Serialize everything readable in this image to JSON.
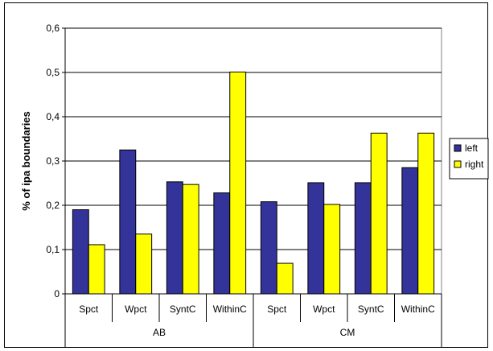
{
  "chart_data": {
    "type": "bar",
    "title": "",
    "xlabel": "",
    "ylabel": "% of ipa boundaries",
    "ylim": [
      0,
      0.6
    ],
    "yticks": [
      "0",
      "0,1",
      "0,2",
      "0,3",
      "0,4",
      "0,5",
      "0,6"
    ],
    "ytick_values": [
      0,
      0.1,
      0.2,
      0.3,
      0.4,
      0.5,
      0.6
    ],
    "groups": [
      {
        "label": "AB",
        "categories": [
          "Spct",
          "Wpct",
          "SyntC",
          "WithinC"
        ]
      },
      {
        "label": "CM",
        "categories": [
          "Spct",
          "Wpct",
          "SyntC",
          "WithinC"
        ]
      }
    ],
    "series": [
      {
        "name": "left",
        "color": "#333399",
        "values": [
          0.19,
          0.325,
          0.253,
          0.228,
          0.208,
          0.251,
          0.251,
          0.285
        ]
      },
      {
        "name": "right",
        "color": "#ffff00",
        "values": [
          0.111,
          0.135,
          0.247,
          0.501,
          0.069,
          0.202,
          0.363,
          0.363
        ]
      }
    ],
    "grid": true,
    "legend": "right"
  }
}
